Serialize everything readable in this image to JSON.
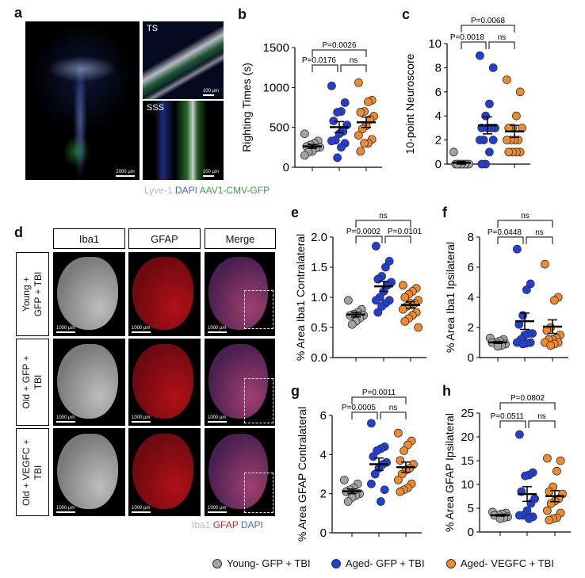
{
  "panel_letters": {
    "a": "a",
    "b": "b",
    "c": "c",
    "d": "d",
    "e": "e",
    "f": "f",
    "g": "g",
    "h": "h"
  },
  "panel_a": {
    "insets": [
      "TS",
      "SSS"
    ],
    "scalebars": [
      "2000 µm",
      "100 µm",
      "100 µm"
    ],
    "caption": {
      "lyve1": "Lyve-1",
      "dapi": "DAPI",
      "gfp": "AAV1-CMV-GFP"
    }
  },
  "panel_d": {
    "columns": [
      "Iba1",
      "GFAP",
      "Merge"
    ],
    "rows": [
      [
        "Young +",
        "GFP + TBI"
      ],
      [
        "Old + GFP +",
        "TBI"
      ],
      [
        "Old + VEGFC +",
        "TBI"
      ]
    ],
    "scalebar": "1000 µm",
    "caption": {
      "iba1": "Iba1",
      "gfap": "GFAP",
      "dapi": "DAPI"
    }
  },
  "colors": {
    "young_gfp": "#a3a3a3",
    "aged_gfp": "#1f3fd8",
    "aged_vegfc": "#f28a2c",
    "lyve1": "#b8b8b8",
    "dapi": "#4a64c8",
    "gfp": "#3aa04a",
    "gfap": "#e0202a"
  },
  "legend": [
    {
      "label": "Young- GFP + TBI",
      "color": "#a3a3a3"
    },
    {
      "label": "Aged- GFP + TBI",
      "color": "#1f3fd8"
    },
    {
      "label": "Aged- VEGFC + TBI",
      "color": "#f28a2c"
    }
  ],
  "chart_data": [
    {
      "id": "b",
      "type": "scatter",
      "ylabel": "Righting Times (s)",
      "ylim": [
        0,
        1500
      ],
      "yticks": [
        "0",
        "500",
        "1000",
        "1500"
      ],
      "ytick_values": [
        0,
        500,
        1000,
        1500
      ],
      "series": [
        {
          "name": "Young- GFP + TBI",
          "values": [
            420,
            330,
            300,
            280,
            260,
            250,
            240,
            200,
            190,
            150
          ]
        },
        {
          "name": "Aged- GFP + TBI",
          "values": [
            1020,
            810,
            700,
            690,
            580,
            530,
            450,
            420,
            340,
            330,
            300,
            250,
            120
          ]
        },
        {
          "name": "Aged- VEGFC + TBI",
          "values": [
            1060,
            840,
            820,
            700,
            690,
            640,
            600,
            520,
            480,
            400,
            350,
            300,
            300,
            200
          ]
        }
      ],
      "comparisons": [
        {
          "groups": [
            0,
            1
          ],
          "label": "P=0.0176"
        },
        {
          "groups": [
            1,
            2
          ],
          "label": "ns"
        },
        {
          "groups": [
            0,
            2
          ],
          "label": "P=0.0026"
        }
      ]
    },
    {
      "id": "c",
      "type": "scatter",
      "ylabel": "10-point Neuroscore",
      "ylim": [
        0,
        10
      ],
      "yticks": [
        "0",
        "2",
        "4",
        "6",
        "8",
        "10"
      ],
      "ytick_values": [
        0,
        2,
        4,
        6,
        8,
        10
      ],
      "series": [
        {
          "name": "Young- GFP + TBI",
          "values": [
            1,
            0,
            0,
            0,
            0,
            0,
            0,
            0,
            0
          ]
        },
        {
          "name": "Aged- GFP + TBI",
          "values": [
            9,
            8,
            5,
            4,
            3,
            3,
            3,
            3,
            2,
            2,
            2,
            1,
            0,
            0
          ]
        },
        {
          "name": "Aged- VEGFC + TBI",
          "values": [
            7,
            6,
            4,
            3,
            3,
            3,
            2,
            2,
            2,
            2,
            1,
            1,
            1,
            1
          ]
        }
      ],
      "comparisons": [
        {
          "groups": [
            0,
            1
          ],
          "label": "P=0.0018"
        },
        {
          "groups": [
            1,
            2
          ],
          "label": "ns"
        },
        {
          "groups": [
            0,
            2
          ],
          "label": "P=0.0068"
        }
      ]
    },
    {
      "id": "e",
      "type": "scatter",
      "ylabel": "% Area Iba1 Contralateral",
      "ylim": [
        0,
        2
      ],
      "yticks": [
        "0.0",
        "0.5",
        "1.0",
        "1.5",
        "2.0"
      ],
      "ytick_values": [
        0,
        0.5,
        1,
        1.5,
        2
      ],
      "series": [
        {
          "name": "Young- GFP + TBI",
          "values": [
            0.95,
            0.8,
            0.75,
            0.72,
            0.7,
            0.7,
            0.65,
            0.6,
            0.55
          ]
        },
        {
          "name": "Aged- GFP + TBI",
          "values": [
            1.85,
            1.6,
            1.5,
            1.35,
            1.3,
            1.25,
            1.2,
            1.1,
            1.0,
            0.95,
            0.95,
            0.9,
            0.85,
            0.75
          ]
        },
        {
          "name": "Aged- VEGFC + TBI",
          "values": [
            1.2,
            1.15,
            1.1,
            1.05,
            1.0,
            0.95,
            0.9,
            0.9,
            0.85,
            0.8,
            0.75,
            0.7,
            0.65,
            0.6,
            0.5
          ]
        }
      ],
      "comparisons": [
        {
          "groups": [
            0,
            1
          ],
          "label": "P=0.0002"
        },
        {
          "groups": [
            1,
            2
          ],
          "label": "P=0.0101"
        },
        {
          "groups": [
            0,
            2
          ],
          "label": "ns"
        }
      ]
    },
    {
      "id": "f",
      "type": "scatter",
      "ylabel": "% Area Iba1 Ipsilateral",
      "ylim": [
        0,
        8
      ],
      "yticks": [
        "0",
        "2",
        "4",
        "6",
        "8"
      ],
      "ytick_values": [
        0,
        2,
        4,
        6,
        8
      ],
      "series": [
        {
          "name": "Young- GFP + TBI",
          "values": [
            1.3,
            1.2,
            1.1,
            1.0,
            1.0,
            0.9,
            0.8,
            0.75
          ]
        },
        {
          "name": "Aged- GFP + TBI",
          "values": [
            7.2,
            4.9,
            4.5,
            2.8,
            2.2,
            1.6,
            1.6,
            1.5,
            1.2,
            1.0,
            1.0,
            0.95,
            0.9
          ]
        },
        {
          "name": "Aged- VEGFC + TBI",
          "values": [
            6.2,
            4.0,
            3.8,
            2.0,
            1.8,
            1.5,
            1.3,
            1.2,
            1.2,
            1.0,
            1.0,
            0.9,
            0.8
          ]
        }
      ],
      "comparisons": [
        {
          "groups": [
            0,
            1
          ],
          "label": "P=0.0448"
        },
        {
          "groups": [
            1,
            2
          ],
          "label": "ns"
        },
        {
          "groups": [
            0,
            2
          ],
          "label": "ns"
        }
      ]
    },
    {
      "id": "g",
      "type": "scatter",
      "ylabel": "% Area GFAP Contralateral",
      "ylim": [
        0,
        6
      ],
      "yticks": [
        "0",
        "2",
        "4",
        "6"
      ],
      "ytick_values": [
        0,
        2,
        4,
        6
      ],
      "series": [
        {
          "name": "Young- GFP + TBI",
          "values": [
            2.7,
            2.5,
            2.3,
            2.2,
            2.1,
            2.0,
            1.9,
            1.8,
            1.6
          ]
        },
        {
          "name": "Aged- GFP + TBI",
          "values": [
            5.6,
            4.4,
            4.3,
            4.2,
            3.9,
            3.6,
            3.5,
            3.3,
            3.0,
            2.5,
            2.2,
            1.6
          ]
        },
        {
          "name": "Aged- VEGFC + TBI",
          "values": [
            5.1,
            4.7,
            4.5,
            4.2,
            3.7,
            3.5,
            3.3,
            3.2,
            3.0,
            2.7,
            2.5,
            2.3,
            2.2,
            2.1
          ]
        }
      ],
      "comparisons": [
        {
          "groups": [
            0,
            1
          ],
          "label": "P=0.0005"
        },
        {
          "groups": [
            1,
            2
          ],
          "label": "ns"
        },
        {
          "groups": [
            0,
            2
          ],
          "label": "P=0.0011"
        }
      ]
    },
    {
      "id": "h",
      "type": "scatter",
      "ylabel": "% Area GFAP Ipsilateral",
      "ylim": [
        0,
        25
      ],
      "yticks": [
        "0",
        "5",
        "10",
        "15",
        "20",
        "25"
      ],
      "ytick_values": [
        0,
        5,
        10,
        15,
        20,
        25
      ],
      "series": [
        {
          "name": "Young- GFP + TBI",
          "values": [
            4.2,
            4.0,
            3.8,
            3.6,
            3.5,
            3.2,
            3.0,
            2.8
          ]
        },
        {
          "name": "Aged- GFP + TBI",
          "values": [
            20.5,
            12.5,
            12.0,
            11.8,
            8.5,
            7.0,
            6.0,
            4.5,
            3.5,
            3.5,
            3.2,
            2.8
          ]
        },
        {
          "name": "Aged- VEGFC + TBI",
          "values": [
            15.5,
            15.0,
            12.8,
            9.5,
            8.5,
            8.0,
            7.0,
            6.5,
            6.0,
            4.5,
            4.0,
            3.0,
            2.8,
            2.5
          ]
        }
      ],
      "comparisons": [
        {
          "groups": [
            0,
            1
          ],
          "label": "P=0.0511"
        },
        {
          "groups": [
            1,
            2
          ],
          "label": "ns"
        },
        {
          "groups": [
            0,
            2
          ],
          "label": "P=0.0802"
        }
      ]
    }
  ]
}
